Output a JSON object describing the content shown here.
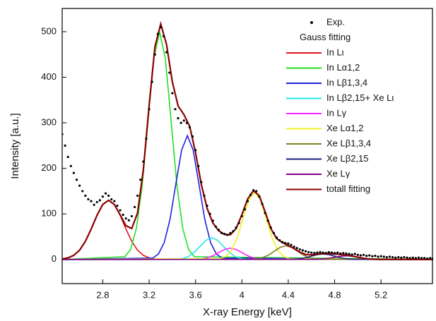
{
  "chart_data": {
    "type": "line",
    "xlabel": "X-ray Energy [keV]",
    "ylabel": "Intensity [a.u.]",
    "legend_title": "Gauss fitting",
    "xlim": [
      2.45,
      5.65
    ],
    "ylim": [
      -53,
      551
    ],
    "xticks": [
      2.8,
      3.2,
      3.6,
      4.0,
      4.4,
      4.8,
      5.2
    ],
    "yticks": [
      0,
      100,
      200,
      300,
      400,
      500
    ],
    "legend": "upper right",
    "series": [
      {
        "name": "Exp.",
        "type": "scatter",
        "color": "#000000",
        "x": [
          2.45,
          2.475,
          2.5,
          2.525,
          2.55,
          2.575,
          2.6,
          2.625,
          2.65,
          2.675,
          2.7,
          2.725,
          2.75,
          2.775,
          2.8,
          2.825,
          2.85,
          2.875,
          2.9,
          2.925,
          2.95,
          2.975,
          3.0,
          3.025,
          3.05,
          3.075,
          3.1,
          3.125,
          3.15,
          3.175,
          3.2,
          3.225,
          3.25,
          3.275,
          3.3,
          3.325,
          3.35,
          3.375,
          3.4,
          3.425,
          3.45,
          3.475,
          3.5,
          3.525,
          3.55,
          3.575,
          3.6,
          3.625,
          3.65,
          3.675,
          3.7,
          3.725,
          3.75,
          3.775,
          3.8,
          3.825,
          3.85,
          3.875,
          3.9,
          3.925,
          3.95,
          3.975,
          4.0,
          4.025,
          4.05,
          4.075,
          4.1,
          4.125,
          4.15,
          4.175,
          4.2,
          4.225,
          4.25,
          4.275,
          4.3,
          4.325,
          4.35,
          4.375,
          4.4,
          4.425,
          4.45,
          4.475,
          4.5,
          4.525,
          4.55,
          4.575,
          4.6,
          4.625,
          4.65,
          4.675,
          4.7,
          4.725,
          4.75,
          4.775,
          4.8,
          4.825,
          4.85,
          4.875,
          4.9,
          4.925,
          4.95,
          4.975,
          5.0,
          5.025,
          5.05,
          5.075,
          5.1,
          5.125,
          5.15,
          5.175,
          5.2,
          5.225,
          5.25,
          5.275,
          5.3,
          5.325,
          5.35,
          5.375,
          5.4,
          5.425,
          5.45,
          5.475,
          5.5,
          5.525,
          5.55,
          5.575,
          5.6,
          5.625,
          5.65
        ],
        "values": [
          275,
          250,
          225,
          205,
          190,
          175,
          162,
          150,
          140,
          132,
          128,
          120,
          126,
          130,
          138,
          145,
          140,
          132,
          128,
          118,
          108,
          98,
          90,
          86,
          95,
          115,
          140,
          175,
          215,
          265,
          330,
          390,
          450,
          495,
          510,
          490,
          455,
          410,
          365,
          330,
          310,
          300,
          305,
          300,
          290,
          270,
          240,
          205,
          170,
          140,
          118,
          100,
          85,
          72,
          65,
          58,
          56,
          54,
          58,
          62,
          70,
          80,
          95,
          110,
          128,
          142,
          152,
          150,
          138,
          122,
          102,
          85,
          70,
          58,
          48,
          42,
          38,
          36,
          35,
          32,
          28,
          25,
          22,
          20,
          18,
          16,
          15,
          14,
          15,
          16,
          15,
          14,
          16,
          15,
          14,
          15,
          13,
          14,
          13,
          12,
          11,
          12,
          10,
          9,
          10,
          8,
          9,
          7,
          8,
          6,
          7,
          6,
          5,
          6,
          5,
          4,
          5,
          4,
          5,
          4,
          3,
          4,
          3,
          4,
          3,
          3,
          2,
          3,
          2
        ]
      },
      {
        "name": "In Lι",
        "color": "#e8141a",
        "x": [
          2.45,
          2.5,
          2.55,
          2.6,
          2.65,
          2.7,
          2.75,
          2.8,
          2.85,
          2.9,
          2.95,
          3.0,
          3.05,
          3.1,
          3.15,
          3.2,
          3.25,
          5.65
        ],
        "values": [
          1.1,
          3.5,
          9.1,
          20.4,
          39.8,
          66.8,
          96.7,
          120.7,
          130,
          120.7,
          96.7,
          66.8,
          39.8,
          20.4,
          9.1,
          3.5,
          1.1,
          0
        ]
      },
      {
        "name": "In Lα1,2",
        "color": "#22e022",
        "x": [
          2.45,
          2.99,
          3.04,
          3.09,
          3.14,
          3.19,
          3.24,
          3.29,
          3.34,
          3.39,
          3.44,
          3.49,
          3.54,
          3.59,
          5.65
        ],
        "values": [
          0,
          6,
          22,
          68,
          162,
          303,
          441,
          500,
          441,
          303,
          162,
          68,
          22,
          6,
          0
        ]
      },
      {
        "name": "In Lβ1,3,4",
        "color": "#2020e0",
        "x": [
          2.45,
          3.23,
          3.28,
          3.33,
          3.38,
          3.43,
          3.48,
          3.53,
          3.58,
          3.63,
          3.68,
          3.73,
          3.78,
          3.83,
          5.65
        ],
        "values": [
          0,
          3,
          12,
          37,
          88,
          165,
          240,
          272,
          240,
          165,
          88,
          37,
          12,
          3,
          0
        ]
      },
      {
        "name": "In Lβ2,15+ Xe Lι",
        "color": "#20e8e8",
        "x": [
          2.45,
          3.44,
          3.49,
          3.54,
          3.59,
          3.64,
          3.69,
          3.74,
          3.79,
          3.84,
          3.89,
          3.94,
          3.99,
          4.04,
          5.65
        ],
        "values": [
          0,
          0.5,
          2.1,
          6.5,
          16,
          29,
          42,
          48,
          42,
          29,
          16,
          6.5,
          2.1,
          0.5,
          0
        ]
      },
      {
        "name": "In Lγ",
        "color": "#ff20ff",
        "x": [
          2.45,
          3.6,
          3.65,
          3.7,
          3.75,
          3.8,
          3.85,
          3.9,
          3.95,
          4.0,
          4.05,
          4.1,
          4.15,
          4.2,
          5.65
        ],
        "values": [
          0,
          0.3,
          1.1,
          3.4,
          8.1,
          15.2,
          22,
          25,
          22,
          15.2,
          8.1,
          3.4,
          1.1,
          0.3,
          0
        ]
      },
      {
        "name": "Xe Lα1,2",
        "color": "#f0f020",
        "x": [
          2.45,
          3.81,
          3.86,
          3.91,
          3.96,
          4.01,
          4.06,
          4.11,
          4.16,
          4.21,
          4.26,
          4.31,
          4.36,
          4.41,
          5.65
        ],
        "values": [
          0,
          1.6,
          6.5,
          20,
          48,
          90,
          131,
          148,
          131,
          90,
          48,
          20,
          6.5,
          1.6,
          0
        ]
      },
      {
        "name": "Xe Lβ1,3,4",
        "color": "#808020",
        "x": [
          2.45,
          4.08,
          4.13,
          4.18,
          4.23,
          4.28,
          4.33,
          4.38,
          4.43,
          4.48,
          4.53,
          4.58,
          4.63,
          4.68,
          5.65
        ],
        "values": [
          0,
          0.3,
          1.3,
          4.1,
          9.7,
          18.2,
          26.5,
          30,
          26.5,
          18.2,
          9.7,
          4.1,
          1.3,
          0.3,
          0
        ]
      },
      {
        "name": "Xe Lβ2,15",
        "color": "#202080",
        "x": [
          2.45,
          4.4,
          4.45,
          4.5,
          4.55,
          4.6,
          4.65,
          4.7,
          4.75,
          4.8,
          4.85,
          4.9,
          4.95,
          5.0,
          5.65
        ],
        "values": [
          0,
          0.1,
          0.5,
          1.6,
          3.9,
          7.3,
          10.6,
          12,
          10.6,
          7.3,
          3.9,
          1.6,
          0.5,
          0.1,
          0
        ]
      },
      {
        "name": "Xe Lγ",
        "color": "#800080",
        "x": [
          2.45,
          4.6,
          4.65,
          4.7,
          4.75,
          4.8,
          4.85,
          4.9,
          4.95,
          5.0,
          5.05,
          5.1,
          5.15,
          5.2,
          5.65
        ],
        "values": [
          0,
          0.1,
          0.4,
          1.1,
          2.6,
          4.9,
          7.1,
          8,
          7.1,
          4.9,
          2.6,
          1.1,
          0.4,
          0.1,
          0
        ]
      },
      {
        "name": "totall fitting",
        "color": "#8b0000",
        "x": [
          2.45,
          2.5,
          2.55,
          2.6,
          2.65,
          2.7,
          2.75,
          2.8,
          2.85,
          2.9,
          2.95,
          3.0,
          3.05,
          3.1,
          3.15,
          3.2,
          3.25,
          3.3,
          3.35,
          3.4,
          3.45,
          3.5,
          3.55,
          3.6,
          3.65,
          3.7,
          3.75,
          3.8,
          3.85,
          3.9,
          3.95,
          4.0,
          4.05,
          4.1,
          4.15,
          4.2,
          4.25,
          4.3,
          4.35,
          4.4,
          4.45,
          4.5,
          4.55,
          4.6,
          4.65,
          4.7,
          4.75,
          4.8,
          4.85,
          4.9,
          4.95,
          5.0,
          5.05,
          5.1,
          5.15,
          5.2,
          5.65
        ],
        "values": [
          1.1,
          3.5,
          9.1,
          20.4,
          39.8,
          66.8,
          96.7,
          120.7,
          130,
          120.7,
          98,
          74,
          68,
          102,
          197,
          338,
          467,
          517,
          472,
          390,
          337,
          318,
          292,
          235,
          165,
          112,
          80,
          63,
          55,
          54,
          68,
          98,
          133,
          151,
          140,
          105,
          68,
          46,
          37,
          31,
          24,
          16,
          11,
          10,
          12,
          13,
          13,
          12,
          11,
          10,
          7.6,
          5,
          2.6,
          1.1,
          0.4,
          0.1,
          0
        ]
      }
    ]
  }
}
